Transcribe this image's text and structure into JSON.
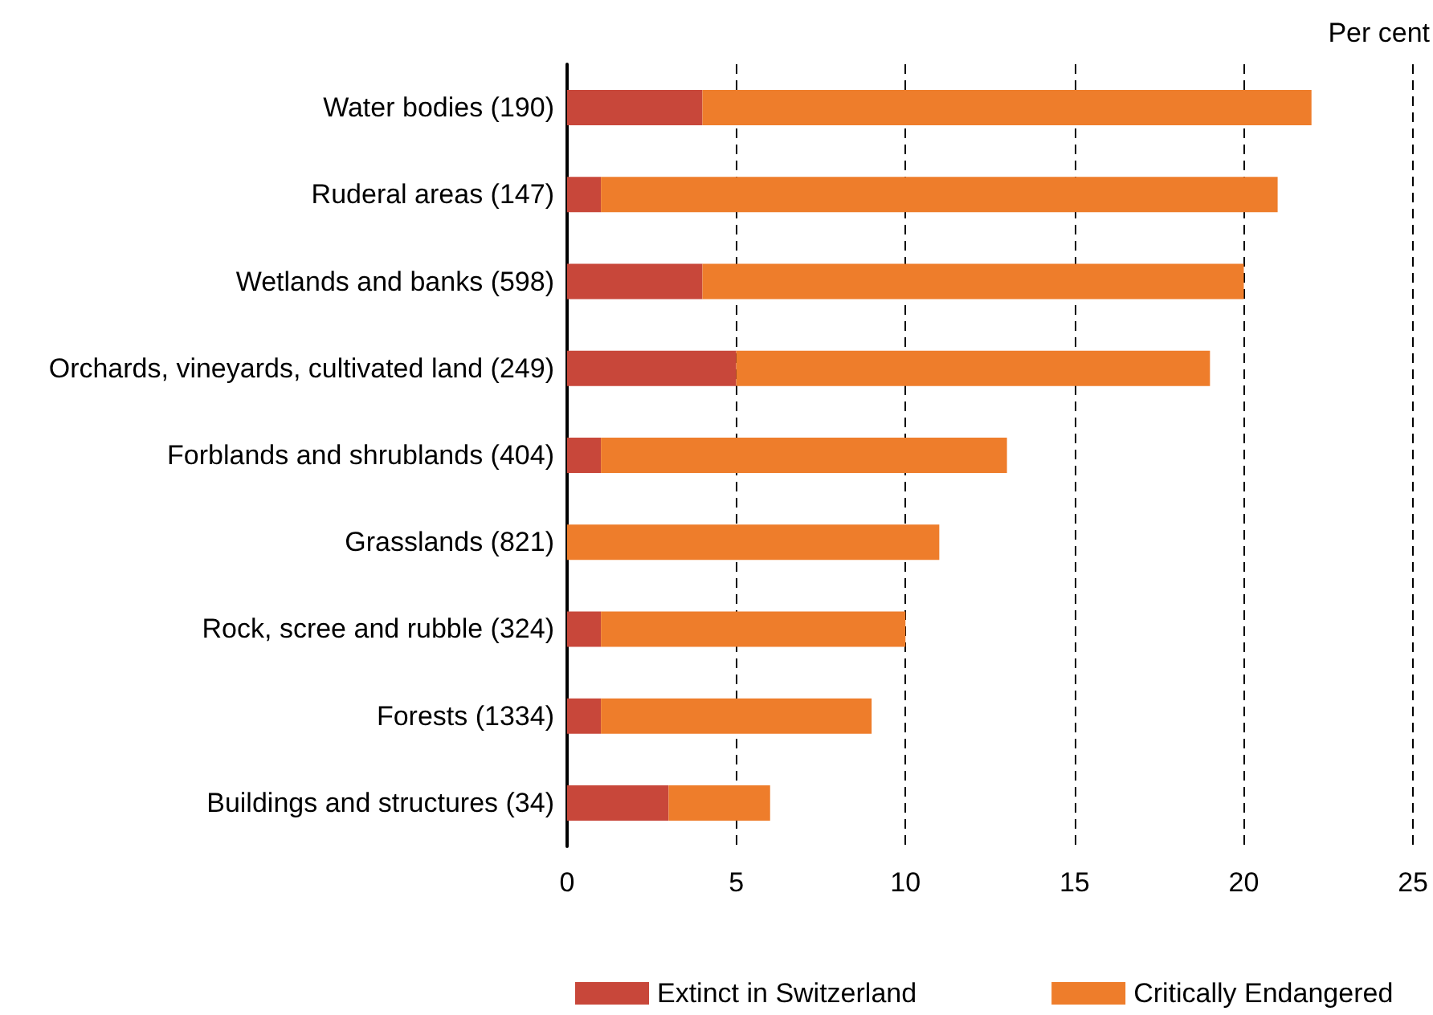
{
  "chart_data": {
    "type": "bar",
    "orientation": "horizontal",
    "stacked": true,
    "xlabel": "Per cent",
    "categories": [
      "Water bodies (190)",
      "Ruderal areas (147)",
      "Wetlands and banks (598)",
      "Orchards, vineyards, cultivated land (249)",
      "Forblands and shrublands (404)",
      "Grasslands (821)",
      "Rock, scree and rubble (324)",
      "Forests (1334)",
      "Buildings and structures (34)"
    ],
    "series": [
      {
        "name": "Extinct in Switzerland",
        "color": "#c8473a",
        "values": [
          4,
          1,
          4,
          5,
          1,
          0,
          1,
          1,
          3
        ]
      },
      {
        "name": "Critically Endangered",
        "color": "#ee7d2b",
        "values": [
          18,
          20,
          16,
          14,
          12,
          11,
          9,
          8,
          3
        ]
      }
    ],
    "xlim": [
      0,
      25
    ],
    "xticks": [
      0,
      5,
      10,
      15,
      20,
      25
    ],
    "grid": "x",
    "legend": "bottom"
  }
}
